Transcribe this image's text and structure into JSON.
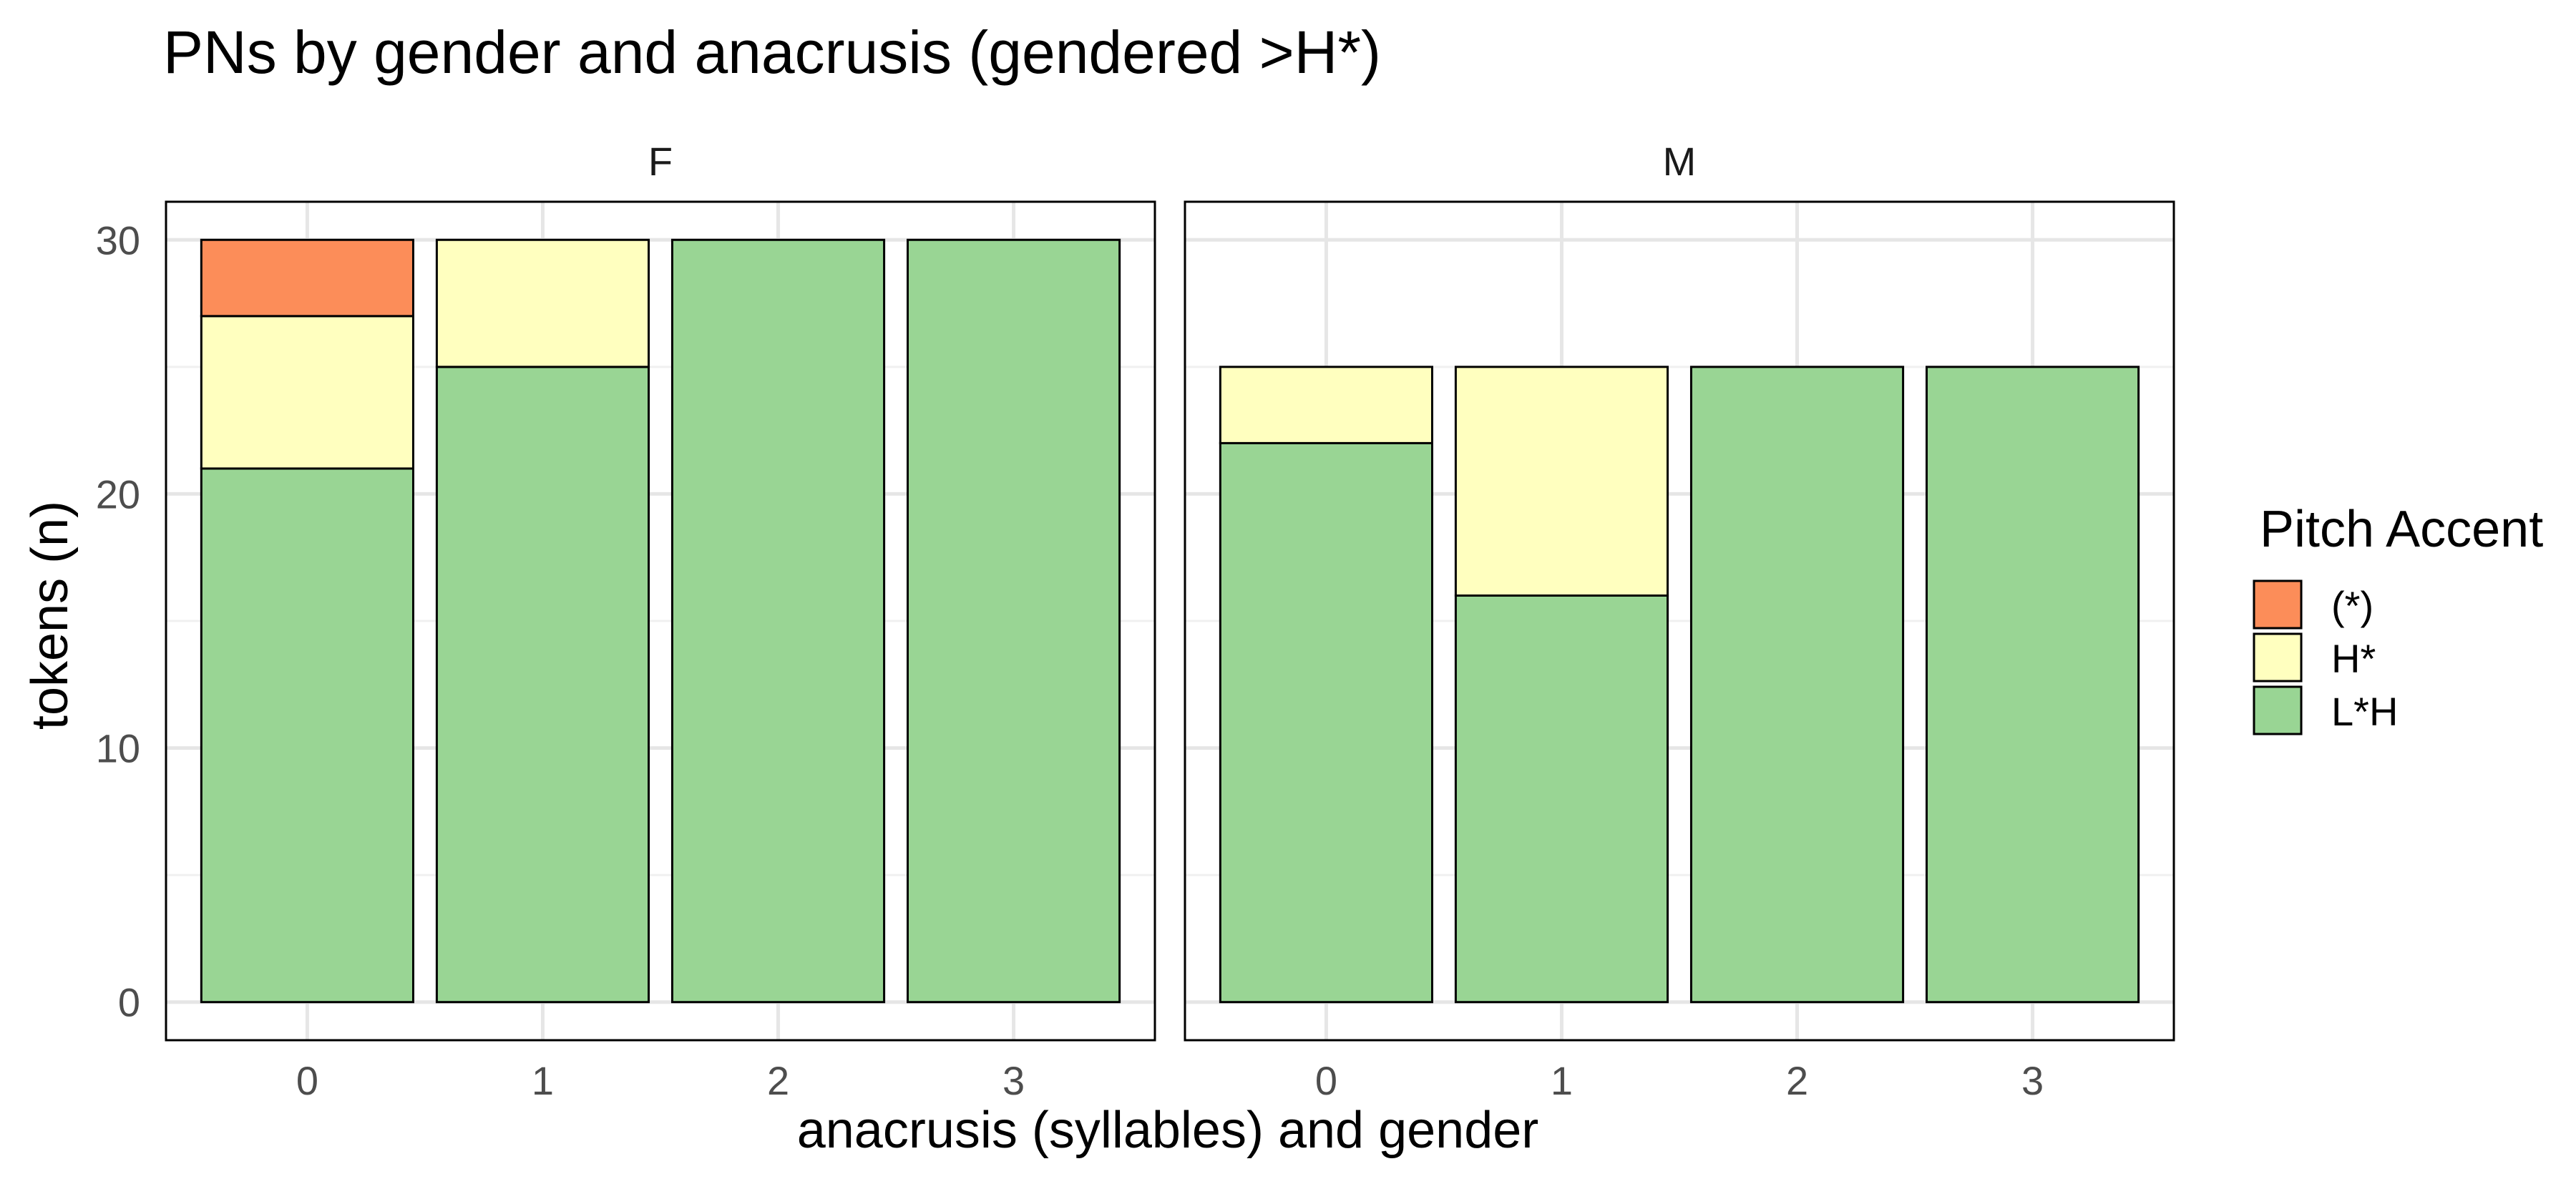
{
  "chart_data": {
    "type": "bar",
    "stacked": true,
    "title": "PNs by gender and anacrusis (gendered >H*)",
    "xlabel": "anacrusis (syllables) and gender",
    "ylabel": "tokens (n)",
    "ylim": [
      -1.5,
      31.5
    ],
    "yticks": [
      0,
      10,
      20,
      30
    ],
    "grid": true,
    "legend": {
      "title": "Pitch Accent",
      "position": "right",
      "entries": [
        "(*)",
        "H*",
        "L*H"
      ]
    },
    "colors": {
      "(*)": "#FC8D59",
      "H*": "#FFFFBF",
      "L*H": "#99D594"
    },
    "categories": [
      "0",
      "1",
      "2",
      "3"
    ],
    "panels": [
      {
        "label": "F",
        "series": [
          {
            "name": "L*H",
            "values": [
              21,
              25,
              30,
              30
            ]
          },
          {
            "name": "H*",
            "values": [
              6,
              5,
              0,
              0
            ]
          },
          {
            "name": "(*)",
            "values": [
              3,
              0,
              0,
              0
            ]
          }
        ]
      },
      {
        "label": "M",
        "series": [
          {
            "name": "L*H",
            "values": [
              22,
              16,
              25,
              25
            ]
          },
          {
            "name": "H*",
            "values": [
              3,
              9,
              0,
              0
            ]
          },
          {
            "name": "(*)",
            "values": [
              0,
              0,
              0,
              0
            ]
          }
        ]
      }
    ]
  }
}
